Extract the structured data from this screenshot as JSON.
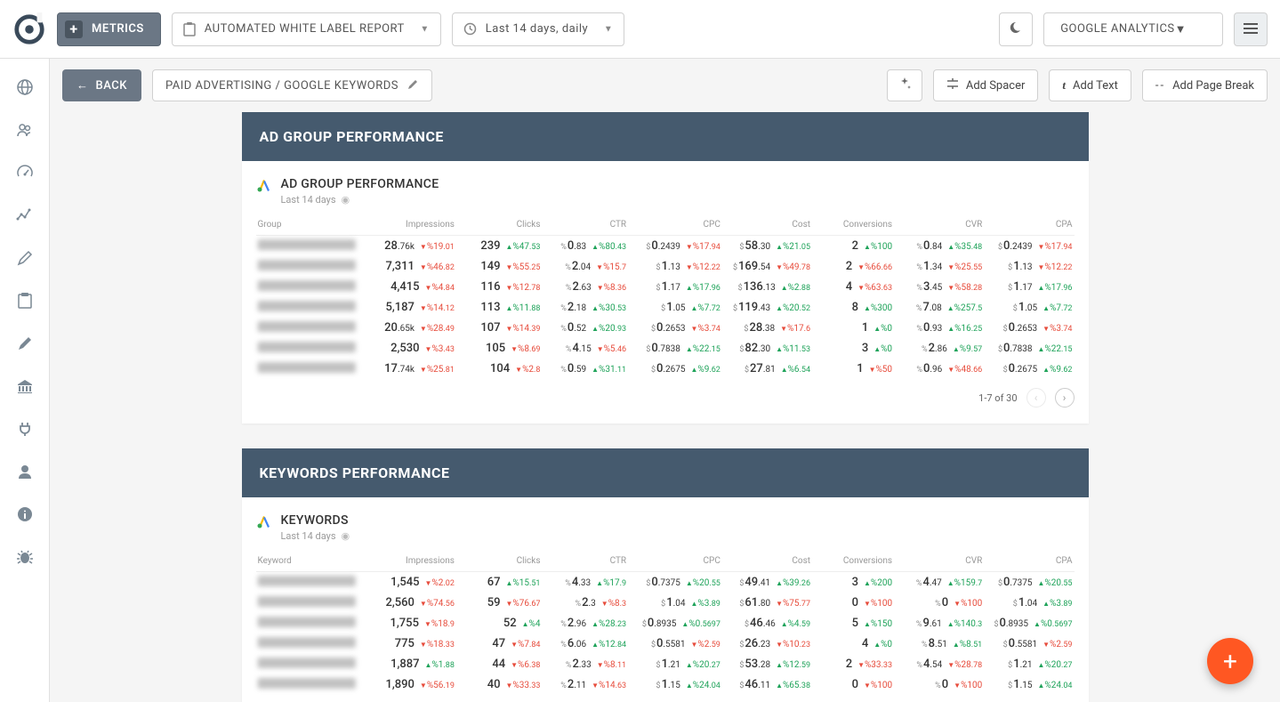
{
  "topbar": {
    "metrics_label": "METRICS",
    "report_label": "AUTOMATED WHITE LABEL REPORT",
    "daterange_label": "Last 14 days, daily",
    "source_label": "GOOGLE ANALYTICS"
  },
  "secbar": {
    "back_label": "BACK",
    "breadcrumb": "PAID ADVERTISING / GOOGLE KEYWORDS",
    "add_spacer": "Add Spacer",
    "add_text": "Add Text",
    "add_pagebreak": "Add Page Break"
  },
  "adgroup": {
    "section_title": "AD GROUP PERFORMANCE",
    "card_title": "AD GROUP PERFORMANCE",
    "card_sub": "Last 14 days",
    "columns": [
      "Group",
      "Impressions",
      "Clicks",
      "CTR",
      "CPC",
      "Cost",
      "Conversions",
      "CVR",
      "CPA"
    ],
    "pager": "1-7 of 30",
    "rows": [
      {
        "impr": {
          "v": "28",
          "f": ".76k",
          "d": "19.01",
          "dir": "down"
        },
        "clicks": {
          "v": "239",
          "d": "47.53",
          "dir": "up"
        },
        "ctr": {
          "v": "0",
          "f": ".83",
          "d": "80.43",
          "dir": "up"
        },
        "cpc": {
          "v": "0",
          "f": ".2439",
          "d": "17.94",
          "dir": "down"
        },
        "cost": {
          "v": "58",
          "f": ".30",
          "d": "21.05",
          "dir": "up"
        },
        "conv": {
          "v": "2",
          "d": "100",
          "dir": "up"
        },
        "cvr": {
          "v": "0",
          "f": ".84",
          "d": "35.48",
          "dir": "up"
        },
        "cpa": {
          "v": "0",
          "f": ".2439",
          "d": "17.94",
          "dir": "down"
        }
      },
      {
        "impr": {
          "v": "7,311",
          "d": "46.82",
          "dir": "down"
        },
        "clicks": {
          "v": "149",
          "d": "55.25",
          "dir": "down"
        },
        "ctr": {
          "v": "2",
          "f": ".04",
          "d": "15.7",
          "dir": "down"
        },
        "cpc": {
          "v": "1",
          "f": ".13",
          "d": "12.22",
          "dir": "down"
        },
        "cost": {
          "v": "169",
          "f": ".54",
          "d": "49.78",
          "dir": "down"
        },
        "conv": {
          "v": "2",
          "d": "66.66",
          "dir": "down"
        },
        "cvr": {
          "v": "1",
          "f": ".34",
          "d": "25.55",
          "dir": "down"
        },
        "cpa": {
          "v": "1",
          "f": ".13",
          "d": "12.22",
          "dir": "down"
        }
      },
      {
        "impr": {
          "v": "4,415",
          "d": "4.84",
          "dir": "down"
        },
        "clicks": {
          "v": "116",
          "d": "12.78",
          "dir": "down"
        },
        "ctr": {
          "v": "2",
          "f": ".63",
          "d": "8.36",
          "dir": "down"
        },
        "cpc": {
          "v": "1",
          "f": ".17",
          "d": "17.96",
          "dir": "up"
        },
        "cost": {
          "v": "136",
          "f": ".13",
          "d": "2.88",
          "dir": "up"
        },
        "conv": {
          "v": "4",
          "d": "63.63",
          "dir": "down"
        },
        "cvr": {
          "v": "3",
          "f": ".45",
          "d": "58.28",
          "dir": "down"
        },
        "cpa": {
          "v": "1",
          "f": ".17",
          "d": "17.96",
          "dir": "up"
        }
      },
      {
        "impr": {
          "v": "5,187",
          "d": "14.12",
          "dir": "down"
        },
        "clicks": {
          "v": "113",
          "d": "11.88",
          "dir": "up"
        },
        "ctr": {
          "v": "2",
          "f": ".18",
          "d": "30.53",
          "dir": "up"
        },
        "cpc": {
          "v": "1",
          "f": ".05",
          "d": "7.72",
          "dir": "up"
        },
        "cost": {
          "v": "119",
          "f": ".43",
          "d": "20.52",
          "dir": "up"
        },
        "conv": {
          "v": "8",
          "d": "300",
          "dir": "up"
        },
        "cvr": {
          "v": "7",
          "f": ".08",
          "d": "257.5",
          "dir": "up"
        },
        "cpa": {
          "v": "1",
          "f": ".05",
          "d": "7.72",
          "dir": "up"
        }
      },
      {
        "impr": {
          "v": "20",
          "f": ".65k",
          "d": "28.49",
          "dir": "down"
        },
        "clicks": {
          "v": "107",
          "d": "14.39",
          "dir": "down"
        },
        "ctr": {
          "v": "0",
          "f": ".52",
          "d": "20.93",
          "dir": "up"
        },
        "cpc": {
          "v": "0",
          "f": ".2653",
          "d": "3.74",
          "dir": "down"
        },
        "cost": {
          "v": "28",
          "f": ".38",
          "d": "17.6",
          "dir": "down"
        },
        "conv": {
          "v": "1",
          "d": "0",
          "dir": "up"
        },
        "cvr": {
          "v": "0",
          "f": ".93",
          "d": "16.25",
          "dir": "up"
        },
        "cpa": {
          "v": "0",
          "f": ".2653",
          "d": "3.74",
          "dir": "down"
        }
      },
      {
        "impr": {
          "v": "2,530",
          "d": "3.43",
          "dir": "down"
        },
        "clicks": {
          "v": "105",
          "d": "8.69",
          "dir": "down"
        },
        "ctr": {
          "v": "4",
          "f": ".15",
          "d": "5.46",
          "dir": "down"
        },
        "cpc": {
          "v": "0",
          "f": ".7838",
          "d": "22.15",
          "dir": "up"
        },
        "cost": {
          "v": "82",
          "f": ".30",
          "d": "11.53",
          "dir": "up"
        },
        "conv": {
          "v": "3",
          "d": "0",
          "dir": "up"
        },
        "cvr": {
          "v": "2",
          "f": ".86",
          "d": "9.57",
          "dir": "up"
        },
        "cpa": {
          "v": "0",
          "f": ".7838",
          "d": "22.15",
          "dir": "up"
        }
      },
      {
        "impr": {
          "v": "17",
          "f": ".74k",
          "d": "25.81",
          "dir": "down"
        },
        "clicks": {
          "v": "104",
          "d": "2.8",
          "dir": "down"
        },
        "ctr": {
          "v": "0",
          "f": ".59",
          "d": "31.11",
          "dir": "up"
        },
        "cpc": {
          "v": "0",
          "f": ".2675",
          "d": "9.62",
          "dir": "up"
        },
        "cost": {
          "v": "27",
          "f": ".81",
          "d": "6.54",
          "dir": "up"
        },
        "conv": {
          "v": "1",
          "d": "50",
          "dir": "down"
        },
        "cvr": {
          "v": "0",
          "f": ".96",
          "d": "48.66",
          "dir": "down"
        },
        "cpa": {
          "v": "0",
          "f": ".2675",
          "d": "9.62",
          "dir": "up"
        }
      }
    ]
  },
  "keywords": {
    "section_title": "KEYWORDS PERFORMANCE",
    "card_title": "KEYWORDS",
    "card_sub": "Last 14 days",
    "columns": [
      "Keyword",
      "Impressions",
      "Clicks",
      "CTR",
      "CPC",
      "Cost",
      "Conversions",
      "CVR",
      "CPA"
    ],
    "rows": [
      {
        "impr": {
          "v": "1,545",
          "d": "2.02",
          "dir": "down"
        },
        "clicks": {
          "v": "67",
          "d": "15.51",
          "dir": "up"
        },
        "ctr": {
          "v": "4",
          "f": ".33",
          "d": "17.9",
          "dir": "up"
        },
        "cpc": {
          "v": "0",
          "f": ".7375",
          "d": "20.55",
          "dir": "up"
        },
        "cost": {
          "v": "49",
          "f": ".41",
          "d": "39.26",
          "dir": "up"
        },
        "conv": {
          "v": "3",
          "d": "200",
          "dir": "up"
        },
        "cvr": {
          "v": "4",
          "f": ".47",
          "d": "159.7",
          "dir": "up"
        },
        "cpa": {
          "v": "0",
          "f": ".7375",
          "d": "20.55",
          "dir": "up"
        }
      },
      {
        "impr": {
          "v": "2,560",
          "d": "74.56",
          "dir": "down"
        },
        "clicks": {
          "v": "59",
          "d": "76.67",
          "dir": "down"
        },
        "ctr": {
          "v": "2",
          "f": ".3",
          "d": "8.3",
          "dir": "down"
        },
        "cpc": {
          "v": "1",
          "f": ".04",
          "d": "3.89",
          "dir": "up"
        },
        "cost": {
          "v": "61",
          "f": ".80",
          "d": "75.77",
          "dir": "down"
        },
        "conv": {
          "v": "0",
          "d": "100",
          "dir": "down"
        },
        "cvr": {
          "v": "0",
          "d": "100",
          "dir": "down"
        },
        "cpa": {
          "v": "1",
          "f": ".04",
          "d": "3.89",
          "dir": "up"
        }
      },
      {
        "impr": {
          "v": "1,755",
          "d": "18.9",
          "dir": "down"
        },
        "clicks": {
          "v": "52",
          "d": "4",
          "dir": "up"
        },
        "ctr": {
          "v": "2",
          "f": ".96",
          "d": "28.23",
          "dir": "up"
        },
        "cpc": {
          "v": "0",
          "f": ".8935",
          "d": "0.5697",
          "dir": "up"
        },
        "cost": {
          "v": "46",
          "f": ".46",
          "d": "4.59",
          "dir": "up"
        },
        "conv": {
          "v": "5",
          "d": "150",
          "dir": "up"
        },
        "cvr": {
          "v": "9",
          "f": ".61",
          "d": "140.3",
          "dir": "up"
        },
        "cpa": {
          "v": "0",
          "f": ".8935",
          "d": "0.5697",
          "dir": "up"
        }
      },
      {
        "impr": {
          "v": "775",
          "d": "18.33",
          "dir": "down"
        },
        "clicks": {
          "v": "47",
          "d": "7.84",
          "dir": "down"
        },
        "ctr": {
          "v": "6",
          "f": ".06",
          "d": "12.84",
          "dir": "up"
        },
        "cpc": {
          "v": "0",
          "f": ".5581",
          "d": "2.59",
          "dir": "down"
        },
        "cost": {
          "v": "26",
          "f": ".23",
          "d": "10.23",
          "dir": "down"
        },
        "conv": {
          "v": "4",
          "d": "0",
          "dir": "up"
        },
        "cvr": {
          "v": "8",
          "f": ".51",
          "d": "8.51",
          "dir": "up"
        },
        "cpa": {
          "v": "0",
          "f": ".5581",
          "d": "2.59",
          "dir": "down"
        }
      },
      {
        "impr": {
          "v": "1,887",
          "d": "1.88",
          "dir": "up"
        },
        "clicks": {
          "v": "44",
          "d": "6.38",
          "dir": "down"
        },
        "ctr": {
          "v": "2",
          "f": ".33",
          "d": "8.11",
          "dir": "down"
        },
        "cpc": {
          "v": "1",
          "f": ".21",
          "d": "20.27",
          "dir": "up"
        },
        "cost": {
          "v": "53",
          "f": ".28",
          "d": "12.59",
          "dir": "up"
        },
        "conv": {
          "v": "2",
          "d": "33.33",
          "dir": "down"
        },
        "cvr": {
          "v": "4",
          "f": ".54",
          "d": "28.78",
          "dir": "down"
        },
        "cpa": {
          "v": "1",
          "f": ".21",
          "d": "20.27",
          "dir": "up"
        }
      },
      {
        "impr": {
          "v": "1,890",
          "d": "56.19",
          "dir": "down"
        },
        "clicks": {
          "v": "40",
          "d": "33.33",
          "dir": "down"
        },
        "ctr": {
          "v": "2",
          "f": ".11",
          "d": "14.63",
          "dir": "down"
        },
        "cpc": {
          "v": "1",
          "f": ".15",
          "d": "24.04",
          "dir": "up"
        },
        "cost": {
          "v": "46",
          "f": ".11",
          "d": "65.38",
          "dir": "up"
        },
        "conv": {
          "v": "0",
          "d": "100",
          "dir": "down"
        },
        "cvr": {
          "v": "0",
          "d": "100",
          "dir": "down"
        },
        "cpa": {
          "v": "1",
          "f": ".15",
          "d": "24.04",
          "dir": "up"
        }
      }
    ]
  },
  "colors": {
    "up": "#1fa35a",
    "down": "#e74c3c",
    "section_bg": "#455a6e",
    "fab": "#ff5722"
  },
  "col_specs": [
    {
      "key": "impr",
      "prefix": "",
      "width": "11.5%"
    },
    {
      "key": "clicks",
      "prefix": "",
      "width": "10.5%"
    },
    {
      "key": "ctr",
      "prefix": "%",
      "width": "10.5%"
    },
    {
      "key": "cpc",
      "prefix": "$",
      "width": "11.5%"
    },
    {
      "key": "cost",
      "prefix": "$",
      "width": "11%"
    },
    {
      "key": "conv",
      "prefix": "",
      "width": "10%"
    },
    {
      "key": "cvr",
      "prefix": "%",
      "width": "11%"
    },
    {
      "key": "cpa",
      "prefix": "$",
      "width": "11%"
    }
  ]
}
